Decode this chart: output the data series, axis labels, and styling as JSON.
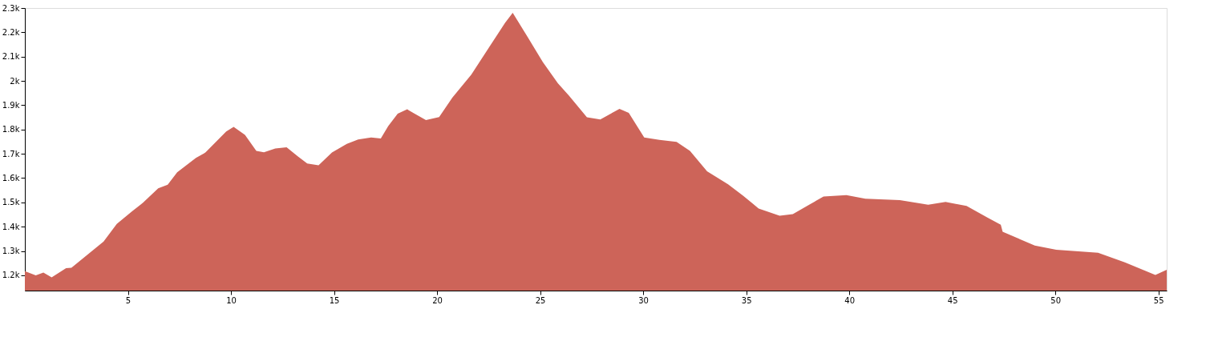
{
  "chart_data": {
    "type": "area",
    "x": [
      0,
      0.53,
      0.9,
      1.3,
      2.0,
      2.26,
      3.82,
      4.46,
      5.2,
      5.74,
      6.47,
      6.93,
      7.39,
      8.3,
      8.76,
      9.77,
      10.13,
      10.68,
      11.23,
      11.6,
      12.15,
      12.7,
      13.24,
      13.7,
      14.25,
      14.9,
      15.62,
      16.17,
      16.8,
      17.27,
      17.63,
      18.09,
      18.55,
      18.91,
      19.46,
      20.1,
      20.74,
      21.66,
      22.57,
      23.3,
      23.67,
      24.4,
      25.13,
      25.86,
      26.4,
      27.27,
      27.92,
      28.85,
      29.3,
      30.05,
      30.79,
      31.62,
      32.27,
      33.1,
      34.12,
      34.86,
      35.6,
      36.62,
      37.26,
      38.75,
      39.86,
      40.78,
      42.45,
      43.83,
      44.67,
      45.69,
      46.7,
      47.35,
      47.44,
      49.0,
      50.04,
      52.07,
      53.37,
      54.85,
      55.4
    ],
    "series": [
      {
        "color": "#cd6459",
        "values": [
          1217,
          1200,
          1211,
          1191,
          1229,
          1231,
          1339,
          1411,
          1463,
          1499,
          1558,
          1573,
          1624,
          1683,
          1705,
          1792,
          1811,
          1778,
          1712,
          1706,
          1722,
          1727,
          1690,
          1660,
          1653,
          1705,
          1741,
          1759,
          1767,
          1763,
          1814,
          1865,
          1883,
          1865,
          1839,
          1851,
          1931,
          2026,
          2144,
          2239,
          2280,
          2180,
          2078,
          1990,
          1939,
          1850,
          1841,
          1885,
          1868,
          1767,
          1757,
          1749,
          1712,
          1628,
          1574,
          1527,
          1475,
          1445,
          1452,
          1524,
          1530,
          1515,
          1509,
          1490,
          1502,
          1485,
          1438,
          1408,
          1379,
          1322,
          1305,
          1293,
          1253,
          1201,
          1223
        ]
      }
    ],
    "xlim": [
      0,
      55.4
    ],
    "xticks": [
      5,
      10,
      15,
      20,
      25,
      30,
      35,
      40,
      45,
      50,
      55
    ],
    "ylim": [
      1137,
      2300
    ],
    "yticks": [
      {
        "value": 1200,
        "label": "1.2k"
      },
      {
        "value": 1300,
        "label": "1.3k"
      },
      {
        "value": 1400,
        "label": "1.4k"
      },
      {
        "value": 1500,
        "label": "1.5k"
      },
      {
        "value": 1600,
        "label": "1.6k"
      },
      {
        "value": 1700,
        "label": "1.7k"
      },
      {
        "value": 1800,
        "label": "1.8k"
      },
      {
        "value": 1900,
        "label": "1.9k"
      },
      {
        "value": 2000,
        "label": "2k"
      },
      {
        "value": 2100,
        "label": "2.1k"
      },
      {
        "value": 2200,
        "label": "2.2k"
      },
      {
        "value": 2300,
        "label": "2.3k"
      }
    ],
    "grid": false
  }
}
